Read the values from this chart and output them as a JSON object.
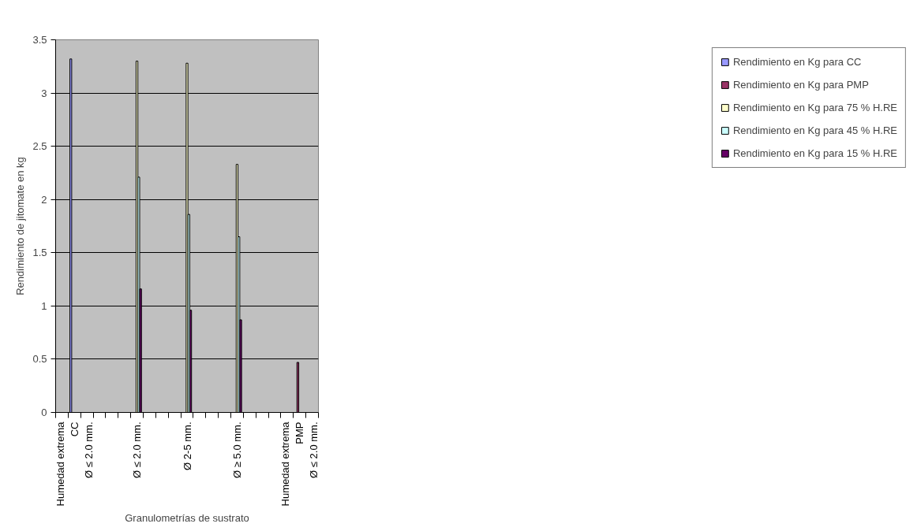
{
  "chart_data": {
    "type": "bar",
    "xlabel": "Granulometrías de sustrato",
    "ylabel": "Rendimiento de jitomate en kg",
    "categories": [
      null,
      "Humedad extrema\nCC\nØ ≤ 2.0 mm.",
      null,
      null,
      null,
      null,
      "Ø ≤ 2.0 mm.",
      null,
      null,
      null,
      "Ø 2-5 mm.",
      null,
      null,
      null,
      "Ø ≥ 5.0 mm.",
      null,
      null,
      null,
      null,
      "Humedad extrema\nPMP\nØ ≤ 2.0 mm.",
      null
    ],
    "series": [
      {
        "name": "Rendimiento en Kg para CC",
        "color": "#9999ff",
        "values": [
          null,
          3.32,
          null,
          null,
          null,
          null,
          null,
          null,
          null,
          null,
          null,
          null,
          null,
          null,
          null,
          null,
          null,
          null,
          null,
          null,
          null
        ]
      },
      {
        "name": "Rendimiento en Kg para PMP",
        "color": "#993366",
        "values": [
          null,
          null,
          null,
          null,
          null,
          null,
          null,
          null,
          null,
          null,
          null,
          null,
          null,
          null,
          null,
          null,
          null,
          null,
          null,
          0.47,
          null
        ]
      },
      {
        "name": "Rendimiento en Kg para 75 % H.RE",
        "color": "#ffffcc",
        "values": [
          null,
          null,
          null,
          null,
          null,
          null,
          3.3,
          null,
          null,
          null,
          3.28,
          null,
          null,
          null,
          2.33,
          null,
          null,
          null,
          null,
          null,
          null
        ]
      },
      {
        "name": "Rendimiento en Kg para 45 % H.RE",
        "color": "#ccffff",
        "values": [
          null,
          null,
          null,
          null,
          null,
          null,
          2.21,
          null,
          null,
          null,
          1.86,
          null,
          null,
          null,
          1.65,
          null,
          null,
          null,
          null,
          null,
          null
        ]
      },
      {
        "name": "Rendimiento en Kg para 15 % H.RE",
        "color": "#660066",
        "values": [
          null,
          null,
          null,
          null,
          null,
          null,
          1.16,
          null,
          null,
          null,
          0.96,
          null,
          null,
          null,
          0.87,
          null,
          null,
          null,
          null,
          null,
          null
        ]
      }
    ],
    "ylim": [
      0,
      3.5
    ],
    "yticks": [
      0,
      0.5,
      1,
      1.5,
      2,
      2.5,
      3,
      3.5
    ],
    "grid": "y",
    "legend": "right"
  }
}
